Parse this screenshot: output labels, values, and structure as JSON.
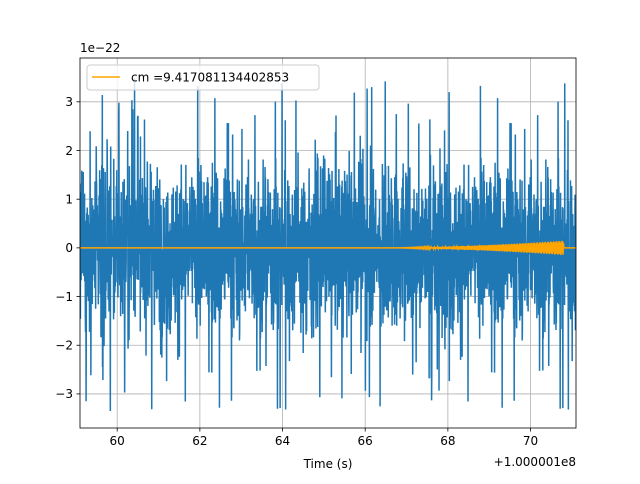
{
  "chart_data": {
    "type": "line",
    "title": "",
    "xlabel": "Time (s)",
    "ylabel": "",
    "x_offset_label": "+1.000001e8",
    "y_scale_label": "1e−22",
    "xlim": [
      59.1,
      71.1
    ],
    "ylim": [
      -3.7,
      3.9
    ],
    "xticks": [
      60,
      62,
      64,
      66,
      68,
      70
    ],
    "xtick_labels": [
      "60",
      "62",
      "64",
      "66",
      "68",
      "70"
    ],
    "yticks": [
      -3,
      -2,
      -1,
      0,
      1,
      2,
      3
    ],
    "ytick_labels": [
      "−3",
      "−2",
      "−1",
      "0",
      "1",
      "2",
      "3"
    ],
    "grid": true,
    "legend_position": "upper-left",
    "series": [
      {
        "name": "",
        "color": "#1f77b4",
        "kind": "noise",
        "envelope_min": -3.35,
        "envelope_max": 3.6,
        "typical_amplitude": 2.3
      },
      {
        "name": "cm =9.417081134402853",
        "color": "#ffa500",
        "kind": "chirp",
        "start_x": 66.6,
        "merger_x": 70.8,
        "end_x": 71.1,
        "peak_amplitude": 0.15
      }
    ]
  }
}
